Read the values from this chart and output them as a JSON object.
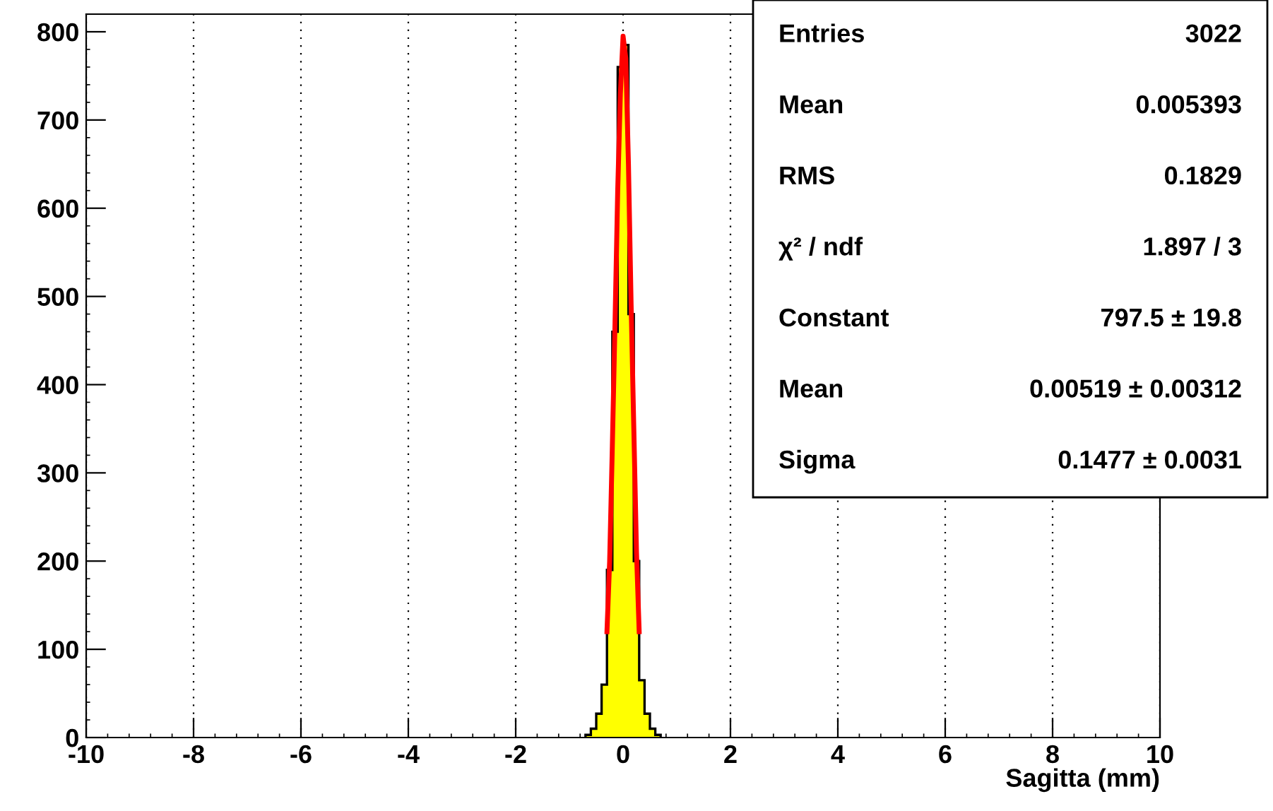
{
  "chart_data": {
    "type": "histogram",
    "xlabel": "Sagitta (mm)",
    "series": [
      {
        "color": "#ffff00",
        "bins": [
          -0.7,
          -0.6,
          -0.5,
          -0.4,
          -0.3,
          -0.2,
          -0.1,
          0.0,
          0.1,
          0.2,
          0.3,
          0.4,
          0.5,
          0.6,
          0.7
        ],
        "values": [
          3,
          10,
          27,
          60,
          190,
          460,
          760,
          785,
          480,
          200,
          65,
          27,
          10,
          3
        ]
      },
      {
        "type": "line",
        "color": "#ff0000",
        "x": [
          -0.3,
          -0.25,
          -0.2,
          -0.15,
          -0.1,
          -0.05,
          0.0,
          0.05,
          0.1,
          0.15,
          0.2,
          0.25,
          0.3
        ],
        "values": [
          120,
          200,
          330,
          470,
          620,
          730,
          795,
          770,
          650,
          490,
          350,
          210,
          120
        ]
      }
    ],
    "xlim": [
      -10,
      10
    ],
    "xticks": [
      -10,
      -8,
      -6,
      -4,
      -2,
      0,
      2,
      4,
      6,
      8,
      10
    ],
    "ylim": [
      0,
      820
    ],
    "yticks": [
      0,
      100,
      200,
      300,
      400,
      500,
      600,
      700,
      800
    ],
    "grid": "x",
    "annotations": [
      "Entries",
      "3022",
      "Mean",
      "0.005393",
      "RMS",
      "0.1829",
      "χ² / ndf",
      "1.897 / 3",
      "Constant",
      "797.5 ± 19.8",
      "Mean",
      "0.00519 ± 0.00312",
      "Sigma",
      "0.1477 ± 0.0031"
    ]
  }
}
